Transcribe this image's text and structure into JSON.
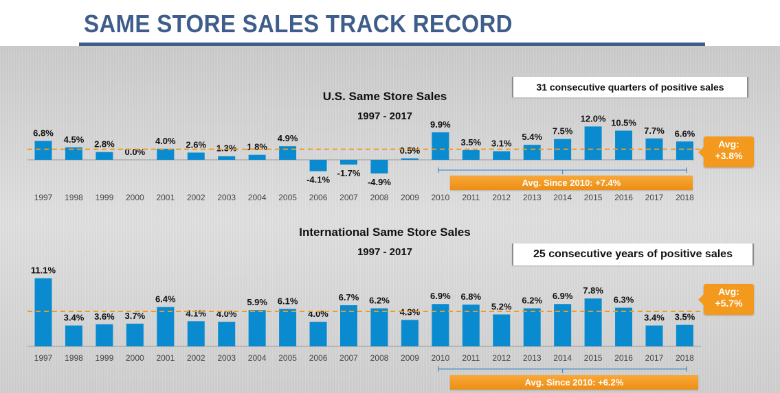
{
  "page_title": "SAME STORE SALES TRACK RECORD",
  "colors": {
    "bar": "#0a8bcf",
    "avg_line": "#f39a1e",
    "title": "#3e5d8a",
    "badge": "#f39a1e"
  },
  "chart_data": [
    {
      "type": "bar",
      "title": "U.S. Same Store Sales",
      "subtitle": "1997 - 2017",
      "categories": [
        "1997",
        "1998",
        "1999",
        "2000",
        "2001",
        "2002",
        "2003",
        "2004",
        "2005",
        "2006",
        "2007",
        "2008",
        "2009",
        "2010",
        "2011",
        "2012",
        "2013",
        "2014",
        "2015",
        "2016",
        "2017",
        "2018"
      ],
      "values": [
        6.8,
        4.5,
        2.8,
        0.0,
        4.0,
        2.6,
        1.3,
        1.8,
        4.9,
        -4.1,
        -1.7,
        -4.9,
        0.5,
        9.9,
        3.5,
        3.1,
        5.4,
        7.5,
        12.0,
        10.5,
        7.7,
        6.6
      ],
      "value_labels": [
        "6.8%",
        "4.5%",
        "2.8%",
        "0.0%",
        "4.0%",
        "2.6%",
        "1.3%",
        "1.8%",
        "4.9%",
        "-4.1%",
        "-1.7%",
        "-4.9%",
        "0.5%",
        "9.9%",
        "3.5%",
        "3.1%",
        "5.4%",
        "7.5%",
        "12.0%",
        "10.5%",
        "7.7%",
        "6.6%"
      ],
      "average": 3.8,
      "avg_label_line1": "Avg:",
      "avg_label_line2": "+3.8%",
      "since_2010_label": "Avg. Since 2010: +7.4%",
      "note": "31 consecutive quarters of positive sales"
    },
    {
      "type": "bar",
      "title": "International Same Store Sales",
      "subtitle": "1997 - 2017",
      "categories": [
        "1997",
        "1998",
        "1999",
        "2000",
        "2001",
        "2002",
        "2003",
        "2004",
        "2005",
        "2006",
        "2007",
        "2008",
        "2009",
        "2010",
        "2011",
        "2012",
        "2013",
        "2014",
        "2015",
        "2016",
        "2017",
        "2018"
      ],
      "values": [
        11.1,
        3.4,
        3.6,
        3.7,
        6.4,
        4.1,
        4.0,
        5.9,
        6.1,
        4.0,
        6.7,
        6.2,
        4.3,
        6.9,
        6.8,
        5.2,
        6.2,
        6.9,
        7.8,
        6.3,
        3.4,
        3.5
      ],
      "value_labels": [
        "11.1%",
        "3.4%",
        "3.6%",
        "3.7%",
        "6.4%",
        "4.1%",
        "4.0%",
        "5.9%",
        "6.1%",
        "4.0%",
        "6.7%",
        "6.2%",
        "4.3%",
        "6.9%",
        "6.8%",
        "5.2%",
        "6.2%",
        "6.9%",
        "7.8%",
        "6.3%",
        "3.4%",
        "3.5%"
      ],
      "average": 5.7,
      "avg_label_line1": "Avg:",
      "avg_label_line2": "+5.7%",
      "since_2010_label": "Avg. Since 2010: +6.2%",
      "note": "25 consecutive years of positive sales"
    }
  ]
}
